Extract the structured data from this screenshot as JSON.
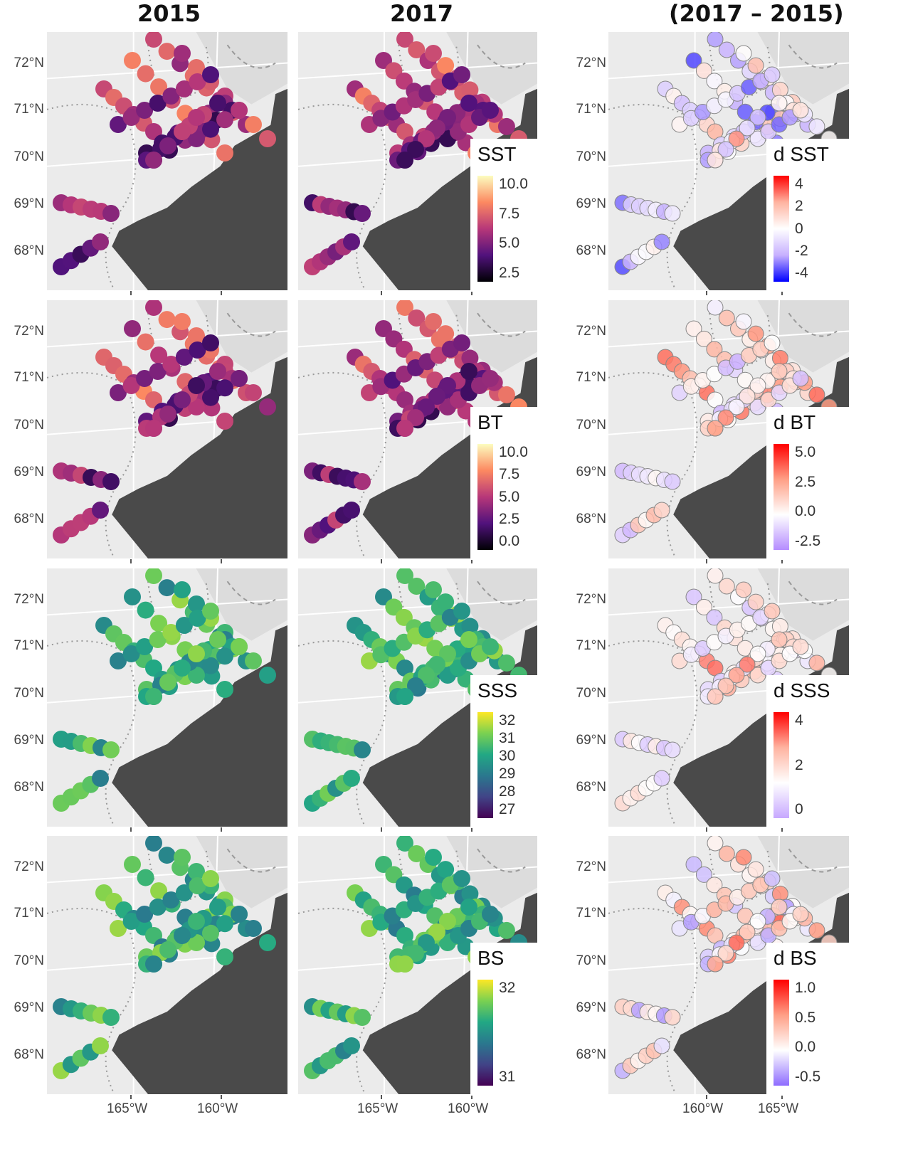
{
  "column_titles": [
    "2015",
    "2017",
    "(2017 – 2015)"
  ],
  "y_ticks": [
    "72°N",
    "71°N",
    "70°N",
    "69°N",
    "68°N"
  ],
  "x_ticks_left": [
    "165°W",
    "160°W"
  ],
  "x_ticks_right": [
    "160°W",
    "165°W"
  ],
  "colors": {
    "panel_bg": "#ebebeb",
    "land": "#4a4a4a",
    "grid": "#ffffff",
    "dotted_lines": "#999999"
  },
  "rows": [
    {
      "variable": "SST",
      "legend": {
        "title": "SST",
        "labels": [
          "10.0",
          "7.5",
          "5.0",
          "2.5"
        ],
        "gradient": [
          "#fcfdbf",
          "#fc8961",
          "#b73779",
          "#51127c",
          "#000004"
        ]
      },
      "diff_legend": {
        "title": "d SST",
        "labels": [
          "4",
          "2",
          "0",
          "-2",
          "-4"
        ],
        "gradient": [
          "#ff0000",
          "#ffb3a0",
          "#ffffff",
          "#c7b0ff",
          "#0000ff"
        ]
      }
    },
    {
      "variable": "BT",
      "legend": {
        "title": "BT",
        "labels": [
          "10.0",
          "7.5",
          "5.0",
          "2.5",
          "0.0"
        ],
        "gradient": [
          "#fcfdbf",
          "#fc8961",
          "#b73779",
          "#51127c",
          "#000004"
        ]
      },
      "diff_legend": {
        "title": "d BT",
        "labels": [
          "5.0",
          "2.5",
          "0.0",
          "-2.5"
        ],
        "gradient": [
          "#ff0000",
          "#ff9f86",
          "#ffffff",
          "#b58cff"
        ]
      }
    },
    {
      "variable": "SSS",
      "legend": {
        "title": "SSS",
        "labels": [
          "32",
          "31",
          "30",
          "29",
          "28",
          "27"
        ],
        "gradient": [
          "#fde725",
          "#7ad151",
          "#22a884",
          "#2a788e",
          "#414487",
          "#440154"
        ]
      },
      "diff_legend": {
        "title": "d SSS",
        "labels": [
          "4",
          "2",
          "0"
        ],
        "gradient": [
          "#ff0000",
          "#ffb3a0",
          "#ffffff",
          "#c7a8ff"
        ]
      }
    },
    {
      "variable": "BS",
      "legend": {
        "title": "BS",
        "labels": [
          "32",
          "31"
        ],
        "gradient": [
          "#fde725",
          "#7ad151",
          "#22a884",
          "#2a788e",
          "#414487",
          "#440154"
        ]
      },
      "diff_legend": {
        "title": "d BS",
        "labels": [
          "1.0",
          "0.5",
          "0.0",
          "-0.5"
        ],
        "gradient": [
          "#ff0000",
          "#ff9f86",
          "#ffffff",
          "#8e6cff"
        ]
      }
    }
  ]
}
